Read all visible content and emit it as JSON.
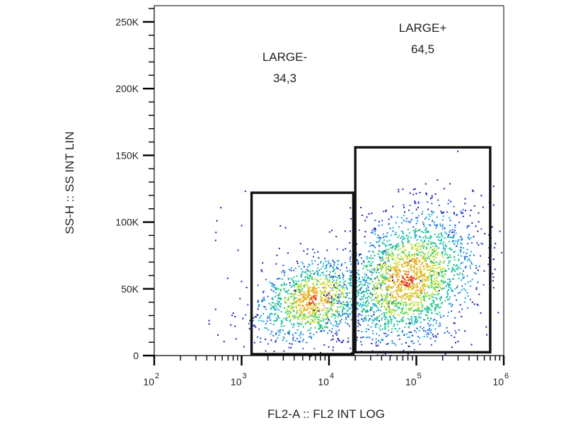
{
  "chart_data": {
    "type": "scatter",
    "subtype": "flow-cytometry-density-dot-plot",
    "xlabel": "FL2-A :: FL2 INT LOG",
    "ylabel": "SS-H :: SS INT LIN",
    "x_scale": "log",
    "xlim": [
      100,
      1000000
    ],
    "x_ticks": [
      {
        "label": "10",
        "exp": "2",
        "value": 100
      },
      {
        "label": "10",
        "exp": "3",
        "value": 1000
      },
      {
        "label": "10",
        "exp": "4",
        "value": 10000
      },
      {
        "label": "10",
        "exp": "5",
        "value": 100000
      },
      {
        "label": "10",
        "exp": "6",
        "value": 1000000
      }
    ],
    "y_scale": "linear",
    "ylim": [
      0,
      262144
    ],
    "y_ticks": [
      {
        "label": "0",
        "value": 0
      },
      {
        "label": "50K",
        "value": 50000
      },
      {
        "label": "100K",
        "value": 100000
      },
      {
        "label": "150K",
        "value": 150000
      },
      {
        "label": "200K",
        "value": 200000
      },
      {
        "label": "250K",
        "value": 250000
      }
    ],
    "grid": false,
    "gates": [
      {
        "name": "LARGE-",
        "percent": "34,3",
        "x_range": [
          1300,
          19000
        ],
        "y_range": [
          0,
          122000
        ]
      },
      {
        "name": "LARGE+",
        "percent": "64,5",
        "x_range": [
          20000,
          700000
        ],
        "y_range": [
          2500,
          156000
        ]
      }
    ],
    "populations": [
      {
        "center_x": 6500,
        "center_y": 42000,
        "spread_log_x": 0.32,
        "spread_y": 15000,
        "count": 1200
      },
      {
        "center_x": 80000,
        "center_y": 58000,
        "spread_log_x": 0.38,
        "spread_y": 24000,
        "count": 2200
      }
    ],
    "density_colors": [
      "#1a1aa8",
      "#2a55e0",
      "#14a8d8",
      "#20c880",
      "#c8e030",
      "#f0a020",
      "#e02010"
    ]
  }
}
